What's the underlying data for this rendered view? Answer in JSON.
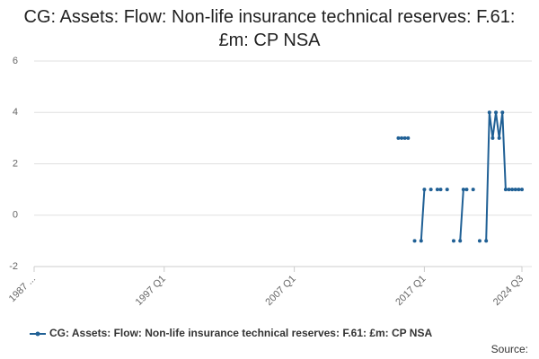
{
  "chart_data": {
    "type": "line",
    "title": "CG: Assets: Flow: Non-life insurance technical reserves: F.61: £m: CP NSA",
    "source": "Source:",
    "categories": [
      "1987 ...",
      null,
      null,
      null,
      null,
      null,
      null,
      null,
      null,
      null,
      null,
      null,
      null,
      null,
      null,
      null,
      null,
      null,
      null,
      null,
      null,
      null,
      null,
      null,
      null,
      null,
      null,
      null,
      null,
      null,
      null,
      null,
      null,
      null,
      null,
      null,
      null,
      null,
      null,
      null,
      "1997 Q1",
      null,
      null,
      null,
      null,
      null,
      null,
      null,
      null,
      null,
      null,
      null,
      null,
      null,
      null,
      null,
      null,
      null,
      null,
      null,
      null,
      null,
      null,
      null,
      null,
      null,
      null,
      null,
      null,
      null,
      null,
      null,
      null,
      null,
      null,
      null,
      null,
      null,
      null,
      null,
      "2007 Q1",
      null,
      null,
      null,
      null,
      null,
      null,
      null,
      null,
      null,
      null,
      null,
      null,
      null,
      null,
      null,
      null,
      null,
      null,
      null,
      null,
      null,
      null,
      null,
      null,
      null,
      null,
      null,
      null,
      null,
      null,
      null,
      null,
      null,
      null,
      null,
      null,
      null,
      null,
      null,
      "2017 Q1",
      null,
      null,
      null,
      null,
      null,
      null,
      null,
      null,
      null,
      null,
      null,
      null,
      null,
      null,
      null,
      null,
      null,
      null,
      null,
      null,
      null,
      null,
      null,
      null,
      null,
      null,
      null,
      null,
      null,
      "2024 Q3"
    ],
    "series": [
      {
        "name": "CG: Assets: Flow: Non-life insurance technical reserves: F.61: £m: CP NSA",
        "color": "#206095",
        "values": [
          null,
          null,
          null,
          null,
          null,
          null,
          null,
          null,
          null,
          null,
          null,
          null,
          null,
          null,
          null,
          null,
          null,
          null,
          null,
          null,
          null,
          null,
          null,
          null,
          null,
          null,
          null,
          null,
          null,
          null,
          null,
          null,
          null,
          null,
          null,
          null,
          null,
          null,
          null,
          null,
          null,
          null,
          null,
          null,
          null,
          null,
          null,
          null,
          null,
          null,
          null,
          null,
          null,
          null,
          null,
          null,
          null,
          null,
          null,
          null,
          null,
          null,
          null,
          null,
          null,
          null,
          null,
          null,
          null,
          null,
          null,
          null,
          null,
          null,
          null,
          null,
          null,
          null,
          null,
          null,
          null,
          null,
          null,
          null,
          null,
          null,
          null,
          null,
          null,
          null,
          null,
          null,
          null,
          null,
          null,
          null,
          null,
          null,
          null,
          null,
          null,
          null,
          null,
          null,
          null,
          null,
          null,
          null,
          null,
          null,
          null,
          null,
          3,
          3,
          3,
          3,
          null,
          -1,
          null,
          -1,
          1,
          null,
          1,
          null,
          1,
          1,
          null,
          1,
          null,
          -1,
          null,
          -1,
          1,
          1,
          null,
          1,
          null,
          -1,
          null,
          -1,
          4,
          3,
          4,
          3,
          4,
          1,
          1,
          1,
          1,
          1,
          1
        ]
      }
    ],
    "ylim": [
      -2,
      6
    ],
    "yticks": [
      -2,
      0,
      2,
      4,
      6
    ],
    "grid": true
  }
}
